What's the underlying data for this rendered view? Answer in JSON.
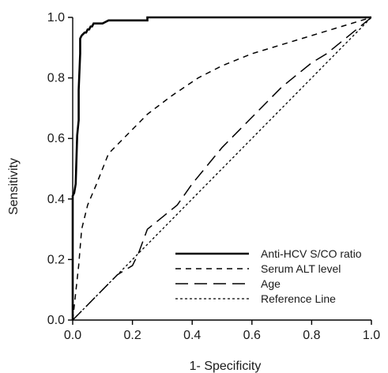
{
  "chart_data": {
    "type": "line",
    "xlabel": "1- Specificity",
    "ylabel": "Sensitivity",
    "xlim": [
      0,
      1
    ],
    "ylim": [
      0,
      1
    ],
    "x_ticks": [
      "0.0",
      "0.2",
      "0.4",
      "0.6",
      "0.8",
      "1.0"
    ],
    "y_ticks": [
      "0.0",
      "0.2",
      "0.4",
      "0.6",
      "0.8",
      "1.0"
    ],
    "grid": false,
    "legend_position": "bottom-right",
    "series": [
      {
        "name": "Anti-HCV S/CO ratio",
        "style": "solid",
        "color": "#000000",
        "x": [
          0,
          0,
          0.005,
          0.01,
          0.015,
          0.02,
          0.02,
          0.025,
          0.025,
          0.03,
          0.035,
          0.04,
          0.045,
          0.05,
          0.055,
          0.06,
          0.065,
          0.07,
          0.075,
          0.08,
          0.1,
          0.11,
          0.12,
          0.14,
          0.25,
          0.25,
          1
        ],
        "y": [
          0,
          0.41,
          0.42,
          0.45,
          0.61,
          0.66,
          0.76,
          0.88,
          0.93,
          0.94,
          0.945,
          0.95,
          0.95,
          0.96,
          0.96,
          0.97,
          0.97,
          0.98,
          0.98,
          0.98,
          0.98,
          0.985,
          0.99,
          0.99,
          0.99,
          1.0,
          1.0
        ]
      },
      {
        "name": "Serum ALT level",
        "style": "short-dash",
        "color": "#000000",
        "x": [
          0,
          0.02,
          0.03,
          0.05,
          0.08,
          0.12,
          0.17,
          0.25,
          0.33,
          0.42,
          0.5,
          0.6,
          0.7,
          0.8,
          0.9,
          1.0
        ],
        "y": [
          0,
          0.18,
          0.3,
          0.38,
          0.45,
          0.55,
          0.6,
          0.68,
          0.74,
          0.8,
          0.84,
          0.88,
          0.91,
          0.94,
          0.97,
          1.0
        ]
      },
      {
        "name": "Age",
        "style": "long-dash",
        "color": "#000000",
        "x": [
          0,
          0.05,
          0.1,
          0.15,
          0.2,
          0.22,
          0.25,
          0.3,
          0.35,
          0.4,
          0.5,
          0.55,
          0.6,
          0.65,
          0.7,
          0.75,
          0.8,
          0.85,
          0.9,
          0.95,
          1.0
        ],
        "y": [
          0,
          0.05,
          0.1,
          0.15,
          0.18,
          0.22,
          0.3,
          0.34,
          0.38,
          0.45,
          0.57,
          0.62,
          0.67,
          0.72,
          0.77,
          0.81,
          0.85,
          0.88,
          0.92,
          0.96,
          1.0
        ]
      },
      {
        "name": "Reference Line",
        "style": "dotted",
        "color": "#000000",
        "x": [
          0,
          1
        ],
        "y": [
          0,
          1
        ]
      }
    ]
  }
}
